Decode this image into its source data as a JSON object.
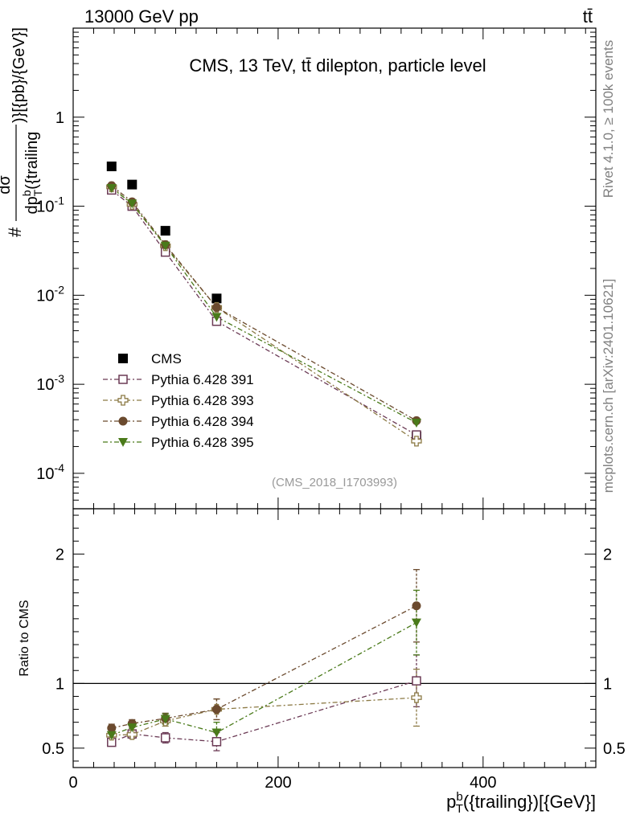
{
  "header": {
    "left": "13000 GeV pp",
    "right": "tt̄"
  },
  "side_labels": {
    "rivet": "Rivet 4.1.0, ≥ 100k events",
    "mcplots": "mcplots.cern.ch [arXiv:2401.10621]"
  },
  "chart_data": [
    {
      "type": "scatter",
      "panel": "main",
      "title": "CMS, 13 TeV, tt̄ dilepton, particle level",
      "watermark": "(CMS_2018_I1703993)",
      "ylabel": "d σ / d p_T^b({trailing}) [{pb}/{GeV}]",
      "yscale": "log",
      "xlim": [
        0,
        510
      ],
      "ylim": [
        4e-05,
        10
      ],
      "ytick_labels": [
        "10^-4",
        "10^-3",
        "10^-2",
        "10^-1",
        "1"
      ],
      "x": [
        37.5,
        57.5,
        90,
        140,
        335
      ],
      "series": [
        {
          "name": "CMS",
          "color": "#000000",
          "marker": "square-filled",
          "values": [
            0.28,
            0.175,
            0.053,
            0.0092,
            0.00026
          ]
        },
        {
          "name": "Pythia 6.428 391",
          "color": "#6b3a55",
          "marker": "square-open",
          "values": [
            0.152,
            0.1,
            0.0305,
            0.0051,
            0.00027
          ]
        },
        {
          "name": "Pythia 6.428 393",
          "color": "#8c7a45",
          "marker": "cross-open",
          "values": [
            0.165,
            0.105,
            0.036,
            0.0073,
            0.00023
          ]
        },
        {
          "name": "Pythia 6.428 394",
          "color": "#6b4a2e",
          "marker": "circle-filled",
          "values": [
            0.17,
            0.112,
            0.037,
            0.0073,
            0.00039
          ]
        },
        {
          "name": "Pythia 6.428 395",
          "color": "#4a7a1a",
          "marker": "triangle-down-filled",
          "values": [
            0.16,
            0.107,
            0.036,
            0.0057,
            0.00037
          ]
        }
      ]
    },
    {
      "type": "scatter",
      "panel": "ratio",
      "ylabel": "Ratio to CMS",
      "xlabel": "p_T^b({trailing})[{GeV}]",
      "xlim": [
        0,
        510
      ],
      "ylim": [
        0.35,
        2.35
      ],
      "xtick_labels": [
        "0",
        "200",
        "400"
      ],
      "ytick_labels": [
        "0.5",
        "1",
        "2"
      ],
      "reference_line": 1,
      "x": [
        37.5,
        57.5,
        90,
        140,
        335
      ],
      "series": [
        {
          "name": "Pythia 6.428 391",
          "color": "#6b3a55",
          "marker": "square-open",
          "values": [
            0.545,
            0.61,
            0.58,
            0.55,
            1.02
          ],
          "errors": [
            0.03,
            0.03,
            0.04,
            0.07,
            0.2
          ]
        },
        {
          "name": "Pythia 6.428 393",
          "color": "#8c7a45",
          "marker": "cross-open",
          "values": [
            0.6,
            0.605,
            0.71,
            0.8,
            0.89
          ],
          "errors": [
            0.03,
            0.03,
            0.04,
            0.08,
            0.22
          ]
        },
        {
          "name": "Pythia 6.428 394",
          "color": "#6b4a2e",
          "marker": "circle-filled",
          "values": [
            0.655,
            0.69,
            0.73,
            0.8,
            1.6
          ],
          "errors": [
            0.03,
            0.03,
            0.04,
            0.08,
            0.28
          ]
        },
        {
          "name": "Pythia 6.428 395",
          "color": "#4a7a1a",
          "marker": "triangle-down-filled",
          "values": [
            0.6,
            0.66,
            0.725,
            0.62,
            1.47
          ],
          "errors": [
            0.03,
            0.03,
            0.04,
            0.08,
            0.25
          ]
        }
      ]
    }
  ]
}
